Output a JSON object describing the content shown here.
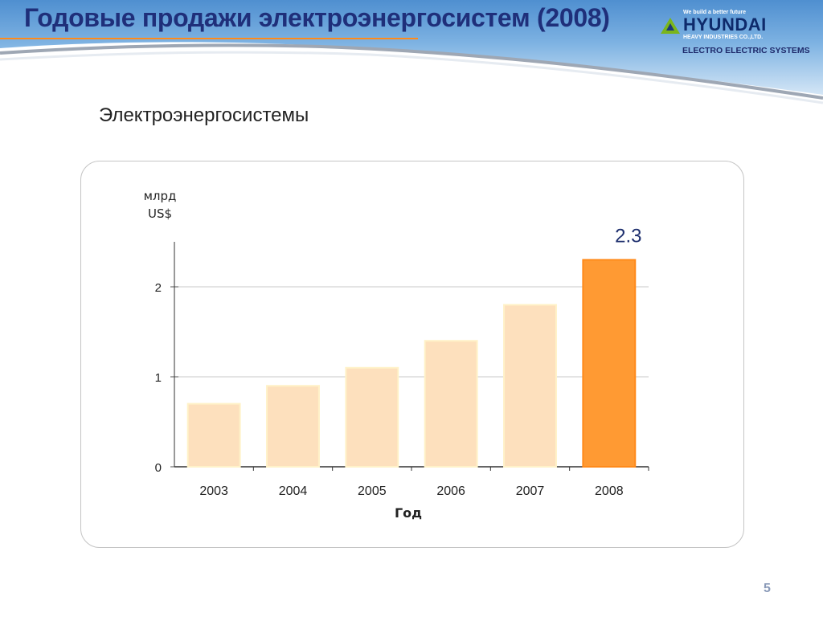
{
  "slide": {
    "title": "Годовые продажи электроэнергосистем (2008)",
    "subtitle": "Электроэнергосистемы",
    "page_number": "5"
  },
  "logo": {
    "tagline": "We build a better future",
    "name": "HYUNDAI",
    "company": "HEAVY INDUSTRIES CO.,LTD.",
    "division": "ELECTRO ELECTRIC SYSTEMS"
  },
  "colors": {
    "title": "#1f2f7a",
    "bar_default_fill": "#fde0bd",
    "bar_default_stroke": "#fff2c8",
    "bar_highlight_fill": "#ff9a33",
    "bar_highlight_stroke": "#ff8a1a",
    "value_label": "#1e2f6e",
    "grid": "#c8c8c8"
  },
  "chart_data": {
    "type": "bar",
    "title": "Электроэнергосистемы",
    "ylabel_lines": [
      "млрд",
      "US$"
    ],
    "xlabel": "Год",
    "categories": [
      "2003",
      "2004",
      "2005",
      "2006",
      "2007",
      "2008"
    ],
    "values": [
      0.7,
      0.9,
      1.1,
      1.4,
      1.8,
      2.3
    ],
    "highlight_index": 5,
    "data_labels": [
      {
        "category": "2008",
        "text": "2.3"
      }
    ],
    "yticks": [
      "0",
      "1",
      "2"
    ],
    "ylim": [
      0,
      2.5
    ],
    "grid": true
  }
}
